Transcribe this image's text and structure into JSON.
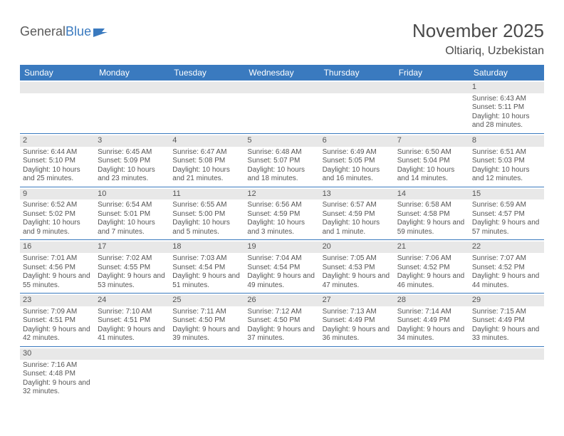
{
  "logo": {
    "text1": "General",
    "text2": "Blue"
  },
  "title": "November 2025",
  "location": "Oltiariq, Uzbekistan",
  "colors": {
    "header_bg": "#3a7abf",
    "header_text": "#ffffff",
    "daynum_bg": "#e8e8e8",
    "border": "#3a7abf",
    "body_text": "#555555"
  },
  "day_names": [
    "Sunday",
    "Monday",
    "Tuesday",
    "Wednesday",
    "Thursday",
    "Friday",
    "Saturday"
  ],
  "weeks": [
    [
      null,
      null,
      null,
      null,
      null,
      null,
      {
        "n": "1",
        "sr": "Sunrise: 6:43 AM",
        "ss": "Sunset: 5:11 PM",
        "dl": "Daylight: 10 hours and 28 minutes."
      }
    ],
    [
      {
        "n": "2",
        "sr": "Sunrise: 6:44 AM",
        "ss": "Sunset: 5:10 PM",
        "dl": "Daylight: 10 hours and 25 minutes."
      },
      {
        "n": "3",
        "sr": "Sunrise: 6:45 AM",
        "ss": "Sunset: 5:09 PM",
        "dl": "Daylight: 10 hours and 23 minutes."
      },
      {
        "n": "4",
        "sr": "Sunrise: 6:47 AM",
        "ss": "Sunset: 5:08 PM",
        "dl": "Daylight: 10 hours and 21 minutes."
      },
      {
        "n": "5",
        "sr": "Sunrise: 6:48 AM",
        "ss": "Sunset: 5:07 PM",
        "dl": "Daylight: 10 hours and 18 minutes."
      },
      {
        "n": "6",
        "sr": "Sunrise: 6:49 AM",
        "ss": "Sunset: 5:05 PM",
        "dl": "Daylight: 10 hours and 16 minutes."
      },
      {
        "n": "7",
        "sr": "Sunrise: 6:50 AM",
        "ss": "Sunset: 5:04 PM",
        "dl": "Daylight: 10 hours and 14 minutes."
      },
      {
        "n": "8",
        "sr": "Sunrise: 6:51 AM",
        "ss": "Sunset: 5:03 PM",
        "dl": "Daylight: 10 hours and 12 minutes."
      }
    ],
    [
      {
        "n": "9",
        "sr": "Sunrise: 6:52 AM",
        "ss": "Sunset: 5:02 PM",
        "dl": "Daylight: 10 hours and 9 minutes."
      },
      {
        "n": "10",
        "sr": "Sunrise: 6:54 AM",
        "ss": "Sunset: 5:01 PM",
        "dl": "Daylight: 10 hours and 7 minutes."
      },
      {
        "n": "11",
        "sr": "Sunrise: 6:55 AM",
        "ss": "Sunset: 5:00 PM",
        "dl": "Daylight: 10 hours and 5 minutes."
      },
      {
        "n": "12",
        "sr": "Sunrise: 6:56 AM",
        "ss": "Sunset: 4:59 PM",
        "dl": "Daylight: 10 hours and 3 minutes."
      },
      {
        "n": "13",
        "sr": "Sunrise: 6:57 AM",
        "ss": "Sunset: 4:59 PM",
        "dl": "Daylight: 10 hours and 1 minute."
      },
      {
        "n": "14",
        "sr": "Sunrise: 6:58 AM",
        "ss": "Sunset: 4:58 PM",
        "dl": "Daylight: 9 hours and 59 minutes."
      },
      {
        "n": "15",
        "sr": "Sunrise: 6:59 AM",
        "ss": "Sunset: 4:57 PM",
        "dl": "Daylight: 9 hours and 57 minutes."
      }
    ],
    [
      {
        "n": "16",
        "sr": "Sunrise: 7:01 AM",
        "ss": "Sunset: 4:56 PM",
        "dl": "Daylight: 9 hours and 55 minutes."
      },
      {
        "n": "17",
        "sr": "Sunrise: 7:02 AM",
        "ss": "Sunset: 4:55 PM",
        "dl": "Daylight: 9 hours and 53 minutes."
      },
      {
        "n": "18",
        "sr": "Sunrise: 7:03 AM",
        "ss": "Sunset: 4:54 PM",
        "dl": "Daylight: 9 hours and 51 minutes."
      },
      {
        "n": "19",
        "sr": "Sunrise: 7:04 AM",
        "ss": "Sunset: 4:54 PM",
        "dl": "Daylight: 9 hours and 49 minutes."
      },
      {
        "n": "20",
        "sr": "Sunrise: 7:05 AM",
        "ss": "Sunset: 4:53 PM",
        "dl": "Daylight: 9 hours and 47 minutes."
      },
      {
        "n": "21",
        "sr": "Sunrise: 7:06 AM",
        "ss": "Sunset: 4:52 PM",
        "dl": "Daylight: 9 hours and 46 minutes."
      },
      {
        "n": "22",
        "sr": "Sunrise: 7:07 AM",
        "ss": "Sunset: 4:52 PM",
        "dl": "Daylight: 9 hours and 44 minutes."
      }
    ],
    [
      {
        "n": "23",
        "sr": "Sunrise: 7:09 AM",
        "ss": "Sunset: 4:51 PM",
        "dl": "Daylight: 9 hours and 42 minutes."
      },
      {
        "n": "24",
        "sr": "Sunrise: 7:10 AM",
        "ss": "Sunset: 4:51 PM",
        "dl": "Daylight: 9 hours and 41 minutes."
      },
      {
        "n": "25",
        "sr": "Sunrise: 7:11 AM",
        "ss": "Sunset: 4:50 PM",
        "dl": "Daylight: 9 hours and 39 minutes."
      },
      {
        "n": "26",
        "sr": "Sunrise: 7:12 AM",
        "ss": "Sunset: 4:50 PM",
        "dl": "Daylight: 9 hours and 37 minutes."
      },
      {
        "n": "27",
        "sr": "Sunrise: 7:13 AM",
        "ss": "Sunset: 4:49 PM",
        "dl": "Daylight: 9 hours and 36 minutes."
      },
      {
        "n": "28",
        "sr": "Sunrise: 7:14 AM",
        "ss": "Sunset: 4:49 PM",
        "dl": "Daylight: 9 hours and 34 minutes."
      },
      {
        "n": "29",
        "sr": "Sunrise: 7:15 AM",
        "ss": "Sunset: 4:49 PM",
        "dl": "Daylight: 9 hours and 33 minutes."
      }
    ],
    [
      {
        "n": "30",
        "sr": "Sunrise: 7:16 AM",
        "ss": "Sunset: 4:48 PM",
        "dl": "Daylight: 9 hours and 32 minutes."
      },
      null,
      null,
      null,
      null,
      null,
      null
    ]
  ]
}
